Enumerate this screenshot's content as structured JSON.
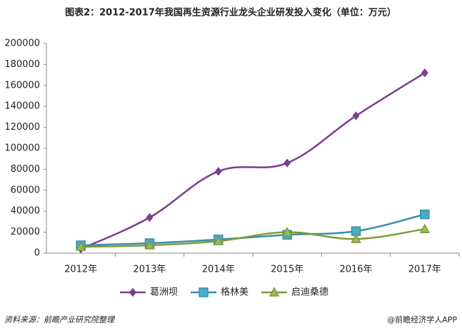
{
  "chart_data": {
    "type": "line",
    "title": "图表2：2012-2017年我国再生资源行业龙头企业研发投入变化（单位：万元）",
    "categories": [
      "2012年",
      "2013年",
      "2014年",
      "2015年",
      "2016年",
      "2017年"
    ],
    "series": [
      {
        "name": "葛洲坝",
        "color": "#7b3f8f",
        "marker": "diamond",
        "values": [
          4000,
          34000,
          78000,
          86000,
          131000,
          172000
        ]
      },
      {
        "name": "格林美",
        "color": "#3a8fa8",
        "marker": "square",
        "values": [
          7500,
          9500,
          13000,
          17500,
          21000,
          37000
        ]
      },
      {
        "name": "启迪桑德",
        "color": "#7f9a3a",
        "marker": "triangle",
        "values": [
          6000,
          7500,
          11500,
          20000,
          13500,
          23000
        ]
      }
    ],
    "ylim": [
      0,
      200000
    ],
    "yticks": [
      0,
      20000,
      40000,
      60000,
      80000,
      100000,
      120000,
      140000,
      160000,
      180000,
      200000
    ],
    "grid": false,
    "legend": "bottom",
    "source": "资料来源：前瞻产业研究院整理",
    "brand": "@前瞻经济学人APP"
  }
}
